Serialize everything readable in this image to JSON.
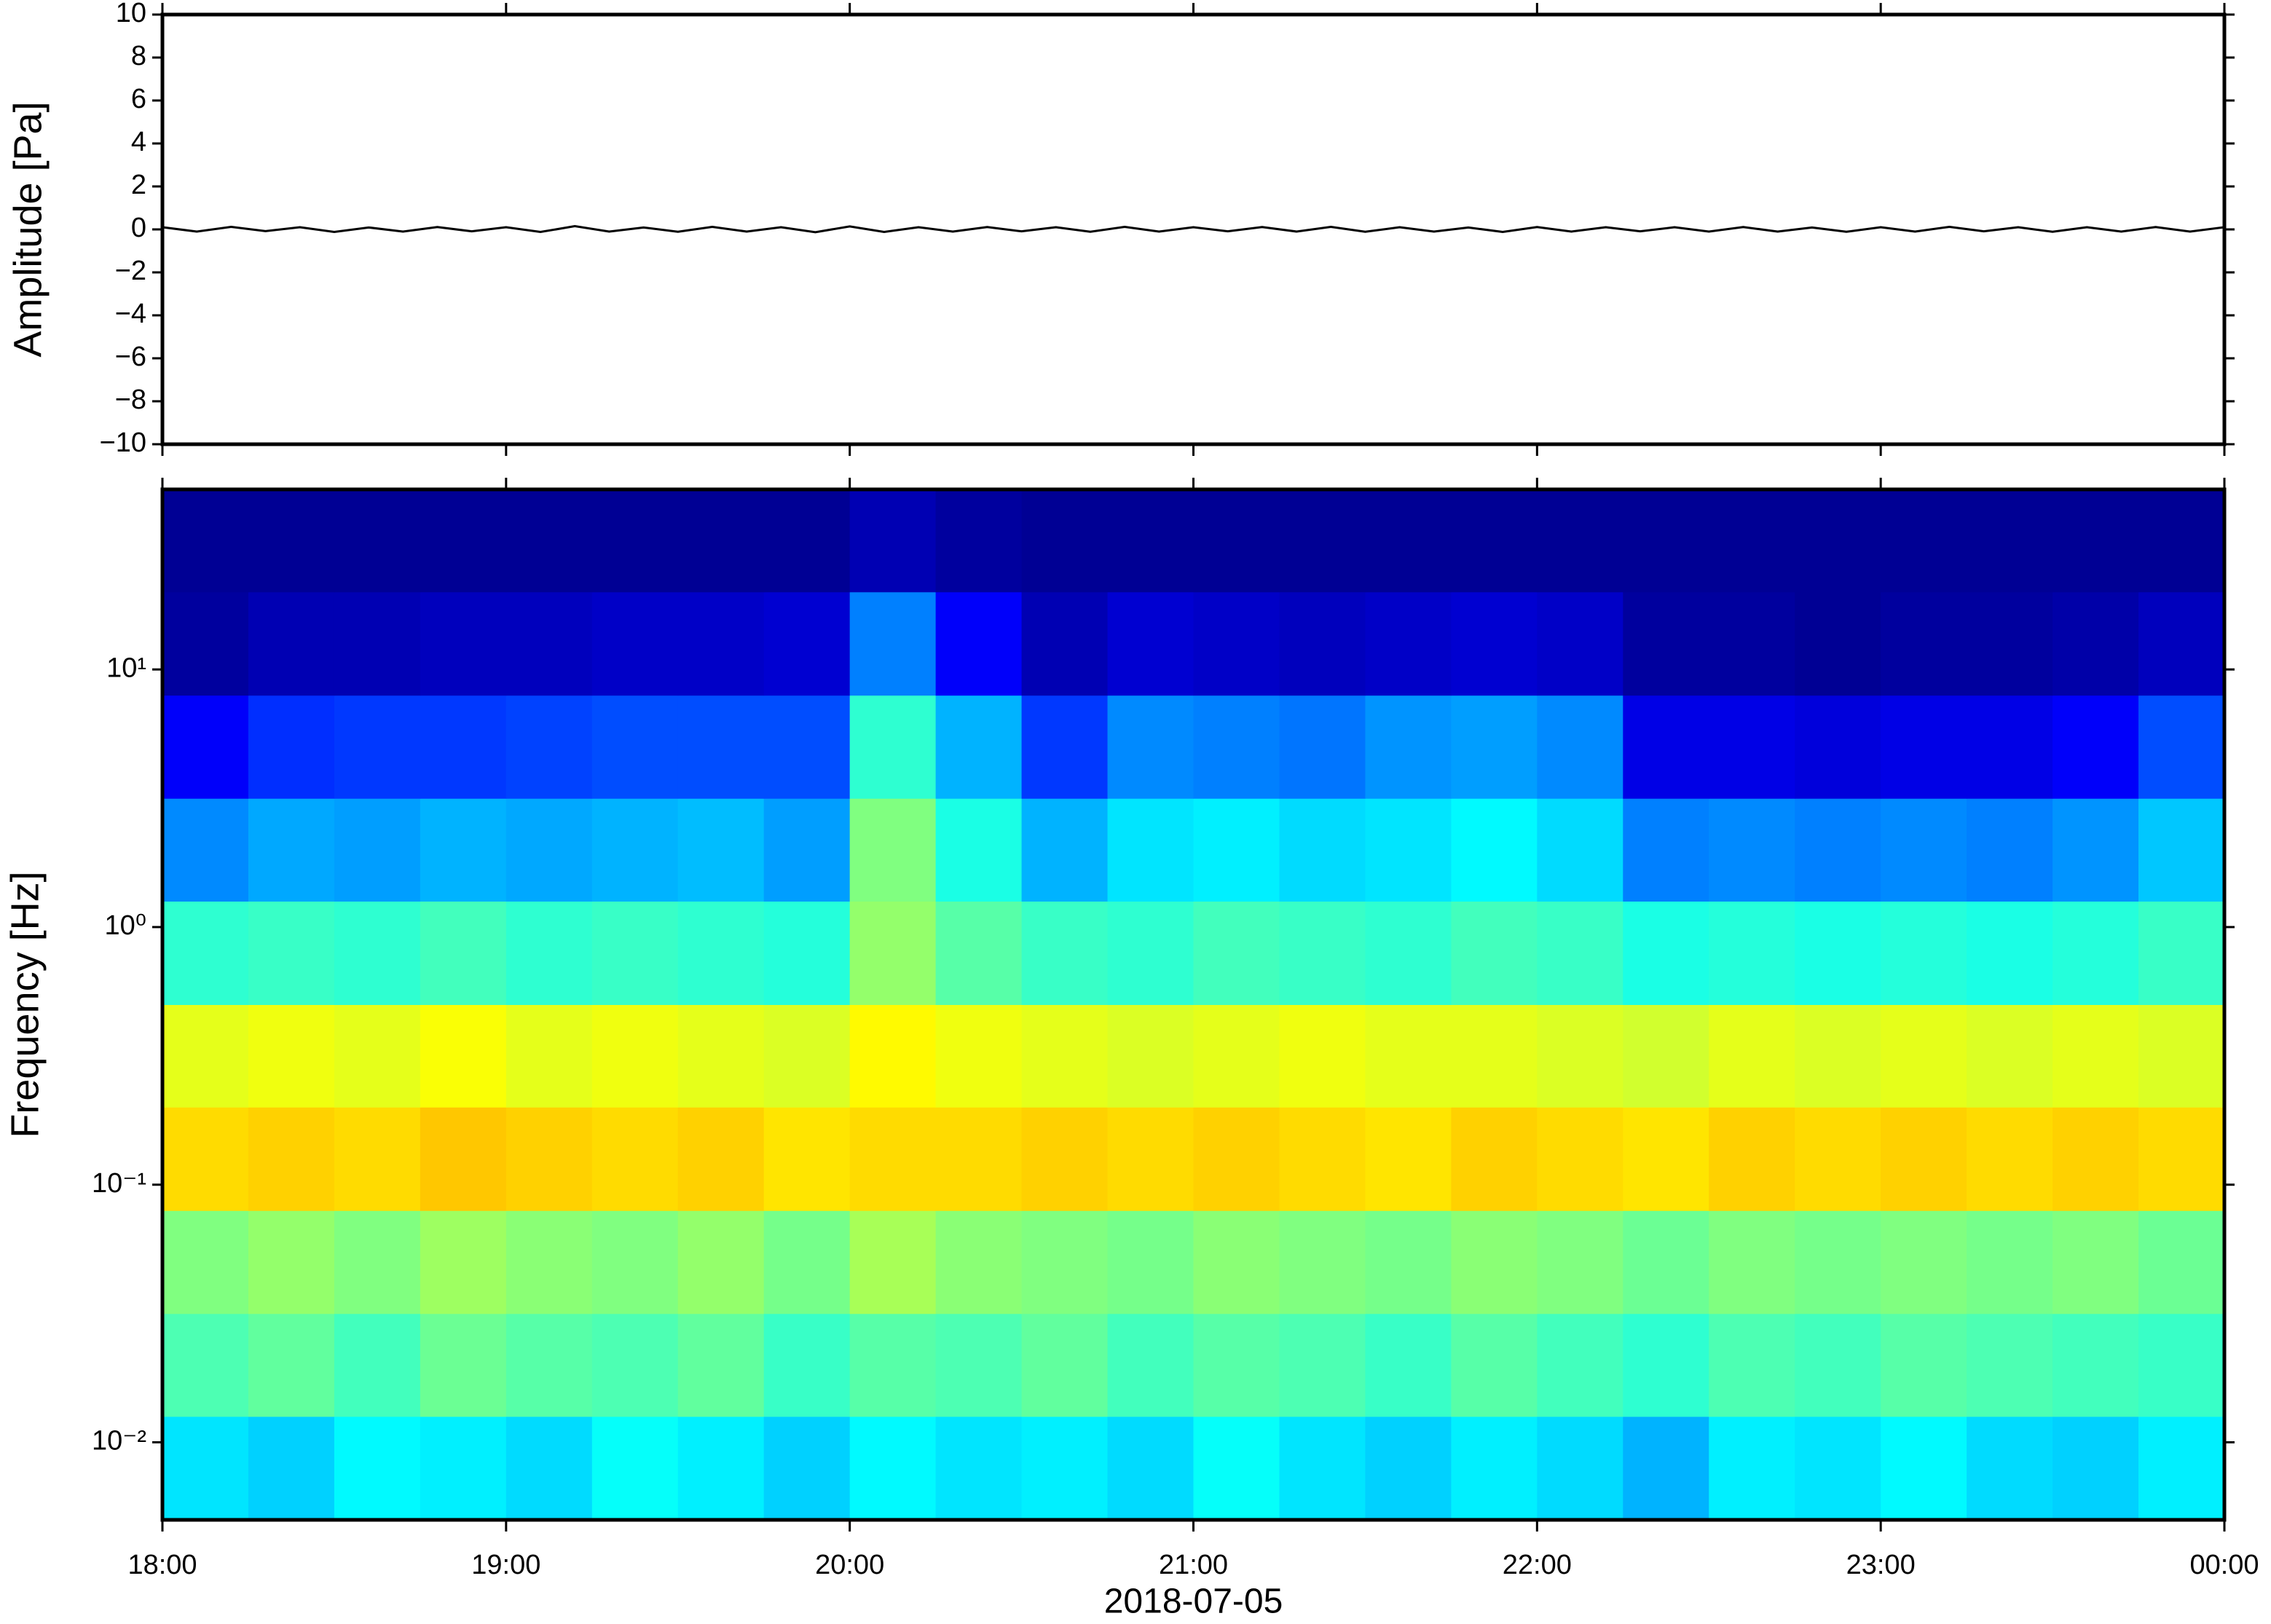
{
  "chart_data": [
    {
      "type": "line",
      "ylabel": "Amplitude [Pa]",
      "color": "#000000",
      "x": [
        18,
        18.1,
        18.2,
        18.3,
        18.4,
        18.5,
        18.6,
        18.7,
        18.8,
        18.9,
        19,
        19.1,
        19.2,
        19.3,
        19.4,
        19.5,
        19.6,
        19.7,
        19.8,
        19.9,
        20,
        20.1,
        20.2,
        20.3,
        20.4,
        20.5,
        20.6,
        20.7,
        20.8,
        20.9,
        21,
        21.1,
        21.2,
        21.3,
        21.4,
        21.5,
        21.6,
        21.7,
        21.8,
        21.9,
        22,
        22.1,
        22.2,
        22.3,
        22.4,
        22.5,
        22.6,
        22.7,
        22.8,
        22.9,
        23,
        23.1,
        23.2,
        23.3,
        23.4,
        23.5,
        23.6,
        23.7,
        23.8,
        23.9,
        24
      ],
      "values": [
        0.1,
        -0.1,
        0.12,
        -0.08,
        0.1,
        -0.12,
        0.09,
        -0.1,
        0.11,
        -0.09,
        0.1,
        -0.12,
        0.15,
        -0.1,
        0.09,
        -0.11,
        0.12,
        -0.1,
        0.1,
        -0.13,
        0.14,
        -0.12,
        0.1,
        -0.1,
        0.11,
        -0.09,
        0.1,
        -0.11,
        0.12,
        -0.1,
        0.1,
        -0.09,
        0.11,
        -0.1,
        0.12,
        -0.11,
        0.1,
        -0.1,
        0.09,
        -0.12,
        0.11,
        -0.1,
        0.1,
        -0.09,
        0.1,
        -0.1,
        0.11,
        -0.1,
        0.09,
        -0.11,
        0.1,
        -0.1,
        0.12,
        -0.09,
        0.1,
        -0.11,
        0.1,
        -0.1,
        0.11,
        -0.1,
        0.1
      ],
      "xlim": [
        18,
        24
      ],
      "ylim": [
        -10,
        10
      ],
      "yticks": [
        {
          "value": -10,
          "label": "−10"
        },
        {
          "value": -8,
          "label": "−8"
        },
        {
          "value": -6,
          "label": "−6"
        },
        {
          "value": -4,
          "label": "−4"
        },
        {
          "value": -2,
          "label": "−2"
        },
        0,
        2,
        4,
        6,
        8,
        10
      ]
    },
    {
      "type": "heatmap",
      "ylabel": "Frequency [Hz]",
      "xlabel": "2018-07-05",
      "log_y": true,
      "colormap": "jet",
      "xlim": [
        18,
        24
      ],
      "ylim": [
        0.005,
        50
      ],
      "xticks": [
        {
          "value": 18,
          "label": "18:00"
        },
        {
          "value": 19,
          "label": "19:00"
        },
        {
          "value": 20,
          "label": "20:00"
        },
        {
          "value": 21,
          "label": "21:00"
        },
        {
          "value": 22,
          "label": "22:00"
        },
        {
          "value": 23,
          "label": "23:00"
        },
        {
          "value": 24,
          "label": "00:00"
        }
      ],
      "yticks": [
        {
          "value": 0.01,
          "label": "10⁻²"
        },
        {
          "value": 0.1,
          "label": "10⁻¹"
        },
        {
          "value": 1,
          "label": "10⁰"
        },
        {
          "value": 10,
          "label": "10¹"
        }
      ],
      "x_bins": [
        18,
        18.25,
        18.5,
        18.75,
        19,
        19.25,
        19.5,
        19.75,
        20,
        20.25,
        20.5,
        20.75,
        21,
        21.25,
        21.5,
        21.75,
        22,
        22.25,
        22.5,
        22.75,
        23,
        23.25,
        23.5,
        23.75,
        24
      ],
      "y_bins": [
        0.005,
        0.0126,
        0.0316,
        0.0794,
        0.2,
        0.5,
        1.26,
        3.16,
        7.94,
        20,
        50
      ],
      "z": [
        [
          0.35,
          0.33,
          0.37,
          0.36,
          0.34,
          0.38,
          0.36,
          0.33,
          0.37,
          0.35,
          0.36,
          0.34,
          0.38,
          0.35,
          0.33,
          0.36,
          0.34,
          0.3,
          0.36,
          0.35,
          0.37,
          0.34,
          0.33,
          0.36
        ],
        [
          0.45,
          0.47,
          0.44,
          0.48,
          0.46,
          0.45,
          0.47,
          0.43,
          0.46,
          0.45,
          0.47,
          0.44,
          0.46,
          0.45,
          0.43,
          0.46,
          0.44,
          0.42,
          0.45,
          0.44,
          0.46,
          0.45,
          0.44,
          0.43
        ],
        [
          0.5,
          0.52,
          0.5,
          0.53,
          0.51,
          0.5,
          0.52,
          0.49,
          0.54,
          0.51,
          0.5,
          0.49,
          0.51,
          0.5,
          0.49,
          0.51,
          0.5,
          0.48,
          0.5,
          0.49,
          0.5,
          0.49,
          0.5,
          0.48
        ],
        [
          0.66,
          0.67,
          0.66,
          0.68,
          0.67,
          0.66,
          0.67,
          0.65,
          0.66,
          0.66,
          0.67,
          0.66,
          0.67,
          0.66,
          0.65,
          0.67,
          0.66,
          0.65,
          0.67,
          0.66,
          0.67,
          0.66,
          0.67,
          0.66
        ],
        [
          0.6,
          0.61,
          0.6,
          0.62,
          0.6,
          0.61,
          0.6,
          0.59,
          0.63,
          0.61,
          0.6,
          0.59,
          0.6,
          0.61,
          0.6,
          0.6,
          0.59,
          0.58,
          0.6,
          0.59,
          0.6,
          0.59,
          0.6,
          0.59
        ],
        [
          0.42,
          0.43,
          0.42,
          0.44,
          0.42,
          0.43,
          0.42,
          0.41,
          0.52,
          0.46,
          0.43,
          0.42,
          0.44,
          0.43,
          0.42,
          0.44,
          0.43,
          0.4,
          0.41,
          0.4,
          0.41,
          0.4,
          0.41,
          0.43
        ],
        [
          0.26,
          0.29,
          0.28,
          0.3,
          0.29,
          0.3,
          0.31,
          0.28,
          0.5,
          0.4,
          0.3,
          0.35,
          0.36,
          0.34,
          0.35,
          0.37,
          0.34,
          0.25,
          0.26,
          0.25,
          0.26,
          0.25,
          0.27,
          0.32
        ],
        [
          0.12,
          0.17,
          0.18,
          0.18,
          0.19,
          0.2,
          0.2,
          0.2,
          0.42,
          0.3,
          0.18,
          0.26,
          0.25,
          0.24,
          0.27,
          0.28,
          0.26,
          0.1,
          0.1,
          0.09,
          0.1,
          0.1,
          0.12,
          0.2
        ],
        [
          0.03,
          0.05,
          0.05,
          0.06,
          0.06,
          0.07,
          0.07,
          0.08,
          0.25,
          0.12,
          0.05,
          0.08,
          0.07,
          0.06,
          0.07,
          0.08,
          0.07,
          0.03,
          0.03,
          0.02,
          0.03,
          0.03,
          0.04,
          0.06
        ],
        [
          0.02,
          0.02,
          0.02,
          0.02,
          0.02,
          0.02,
          0.02,
          0.02,
          0.05,
          0.03,
          0.02,
          0.02,
          0.02,
          0.02,
          0.02,
          0.02,
          0.02,
          0.02,
          0.02,
          0.02,
          0.02,
          0.02,
          0.02,
          0.02
        ]
      ]
    }
  ]
}
